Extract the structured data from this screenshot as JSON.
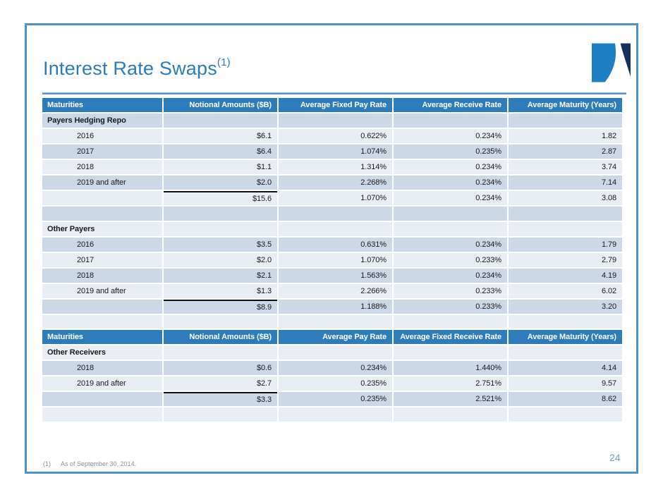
{
  "slide": {
    "title": "Interest Rate Swaps",
    "title_superscript": "(1)",
    "page_number": "24",
    "footnote_marker": "(1)",
    "footnote_text": "As of September 30, 2014."
  },
  "colors": {
    "frame_border": "#4e92c9",
    "title_blue": "#2b7bc0",
    "header_blue": "#2d7dbd",
    "row_light": "#e9edf4",
    "row_dark": "#ccd7e7",
    "logo_light_blue": "#1e7fc2",
    "logo_navy": "#17315f",
    "page_number_blue": "#6fa3d6"
  },
  "table1": {
    "headers": [
      "Maturities",
      "Notional Amounts ($B)",
      "Average Fixed Pay Rate",
      "Average Receive Rate",
      "Average Maturity (Years)"
    ],
    "rows": [
      {
        "type": "section",
        "shade": "dark",
        "label": "Payers Hedging Repo",
        "cells": [
          "",
          "",
          "",
          ""
        ]
      },
      {
        "type": "year",
        "shade": "light",
        "label": "2016",
        "cells": [
          "$6.1",
          "0.622%",
          "0.234%",
          "1.82"
        ]
      },
      {
        "type": "year",
        "shade": "dark",
        "label": "2017",
        "cells": [
          "$6.4",
          "1.074%",
          "0.235%",
          "2.87"
        ]
      },
      {
        "type": "year",
        "shade": "light",
        "label": "2018",
        "cells": [
          "$1.1",
          "1.314%",
          "0.234%",
          "3.74"
        ]
      },
      {
        "type": "year",
        "shade": "dark",
        "label": "2019 and after",
        "cells": [
          "$2.0",
          "2.268%",
          "0.234%",
          "7.14"
        ]
      },
      {
        "type": "total",
        "shade": "light",
        "label": "",
        "cells": [
          "$15.6",
          "1.070%",
          "0.234%",
          "3.08"
        ]
      },
      {
        "type": "empty",
        "shade": "dark",
        "label": "",
        "cells": [
          "",
          "",
          "",
          ""
        ]
      },
      {
        "type": "section",
        "shade": "light",
        "label": "Other Payers",
        "cells": [
          "",
          "",
          "",
          ""
        ]
      },
      {
        "type": "year",
        "shade": "dark",
        "label": "2016",
        "cells": [
          "$3.5",
          "0.631%",
          "0.234%",
          "1.79"
        ]
      },
      {
        "type": "year",
        "shade": "light",
        "label": "2017",
        "cells": [
          "$2.0",
          "1.070%",
          "0.233%",
          "2.79"
        ]
      },
      {
        "type": "year",
        "shade": "dark",
        "label": "2018",
        "cells": [
          "$2.1",
          "1.563%",
          "0.234%",
          "4.19"
        ]
      },
      {
        "type": "year",
        "shade": "light",
        "label": "2019 and after",
        "cells": [
          "$1.3",
          "2.266%",
          "0.233%",
          "6.02"
        ]
      },
      {
        "type": "total",
        "shade": "dark",
        "label": "",
        "cells": [
          "$8.9",
          "1.188%",
          "0.233%",
          "3.20"
        ]
      },
      {
        "type": "empty",
        "shade": "light",
        "label": "",
        "cells": [
          "",
          "",
          "",
          ""
        ]
      }
    ]
  },
  "table2": {
    "headers": [
      "Maturities",
      "Notional Amounts ($B)",
      "Average Pay Rate",
      "Average Fixed Receive Rate",
      "Average Maturity (Years)"
    ],
    "rows": [
      {
        "type": "section",
        "shade": "light",
        "label": "Other Receivers",
        "cells": [
          "",
          "",
          "",
          ""
        ]
      },
      {
        "type": "year",
        "shade": "dark",
        "label": "2018",
        "cells": [
          "$0.6",
          "0.234%",
          "1.440%",
          "4.14"
        ]
      },
      {
        "type": "year",
        "shade": "light",
        "label": "2019 and after",
        "cells": [
          "$2.7",
          "0.235%",
          "2.751%",
          "9.57"
        ]
      },
      {
        "type": "total",
        "shade": "dark",
        "label": "",
        "cells": [
          "$3.3",
          "0.235%",
          "2.521%",
          "8.62"
        ]
      },
      {
        "type": "empty",
        "shade": "light",
        "label": "",
        "cells": [
          "",
          "",
          "",
          ""
        ]
      }
    ]
  }
}
